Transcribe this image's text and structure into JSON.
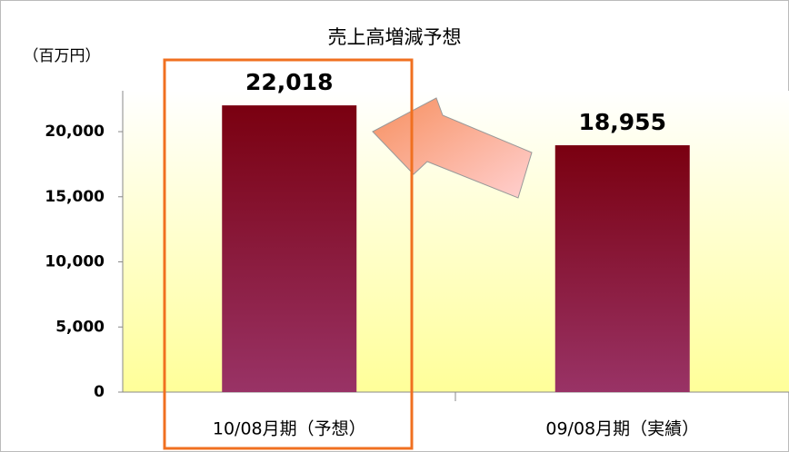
{
  "chart_data": {
    "type": "bar",
    "title": "売上高増減予想",
    "y_label": "（百万円）",
    "categories": [
      "10/08月期（予想）",
      "09/08月期（実績）"
    ],
    "values": [
      22018,
      18955
    ],
    "value_labels": [
      "22,018",
      "18,955"
    ],
    "gradient": [
      "#7a0010",
      "#993366"
    ],
    "ylim": [
      0,
      23000
    ],
    "yticks": [
      0,
      {
        "value": 5000,
        "label": "5,000"
      },
      {
        "value": 10000,
        "label": "10,000"
      },
      {
        "value": 15000,
        "label": "15,000"
      },
      {
        "value": 20000,
        "label": "20,000"
      }
    ]
  }
}
